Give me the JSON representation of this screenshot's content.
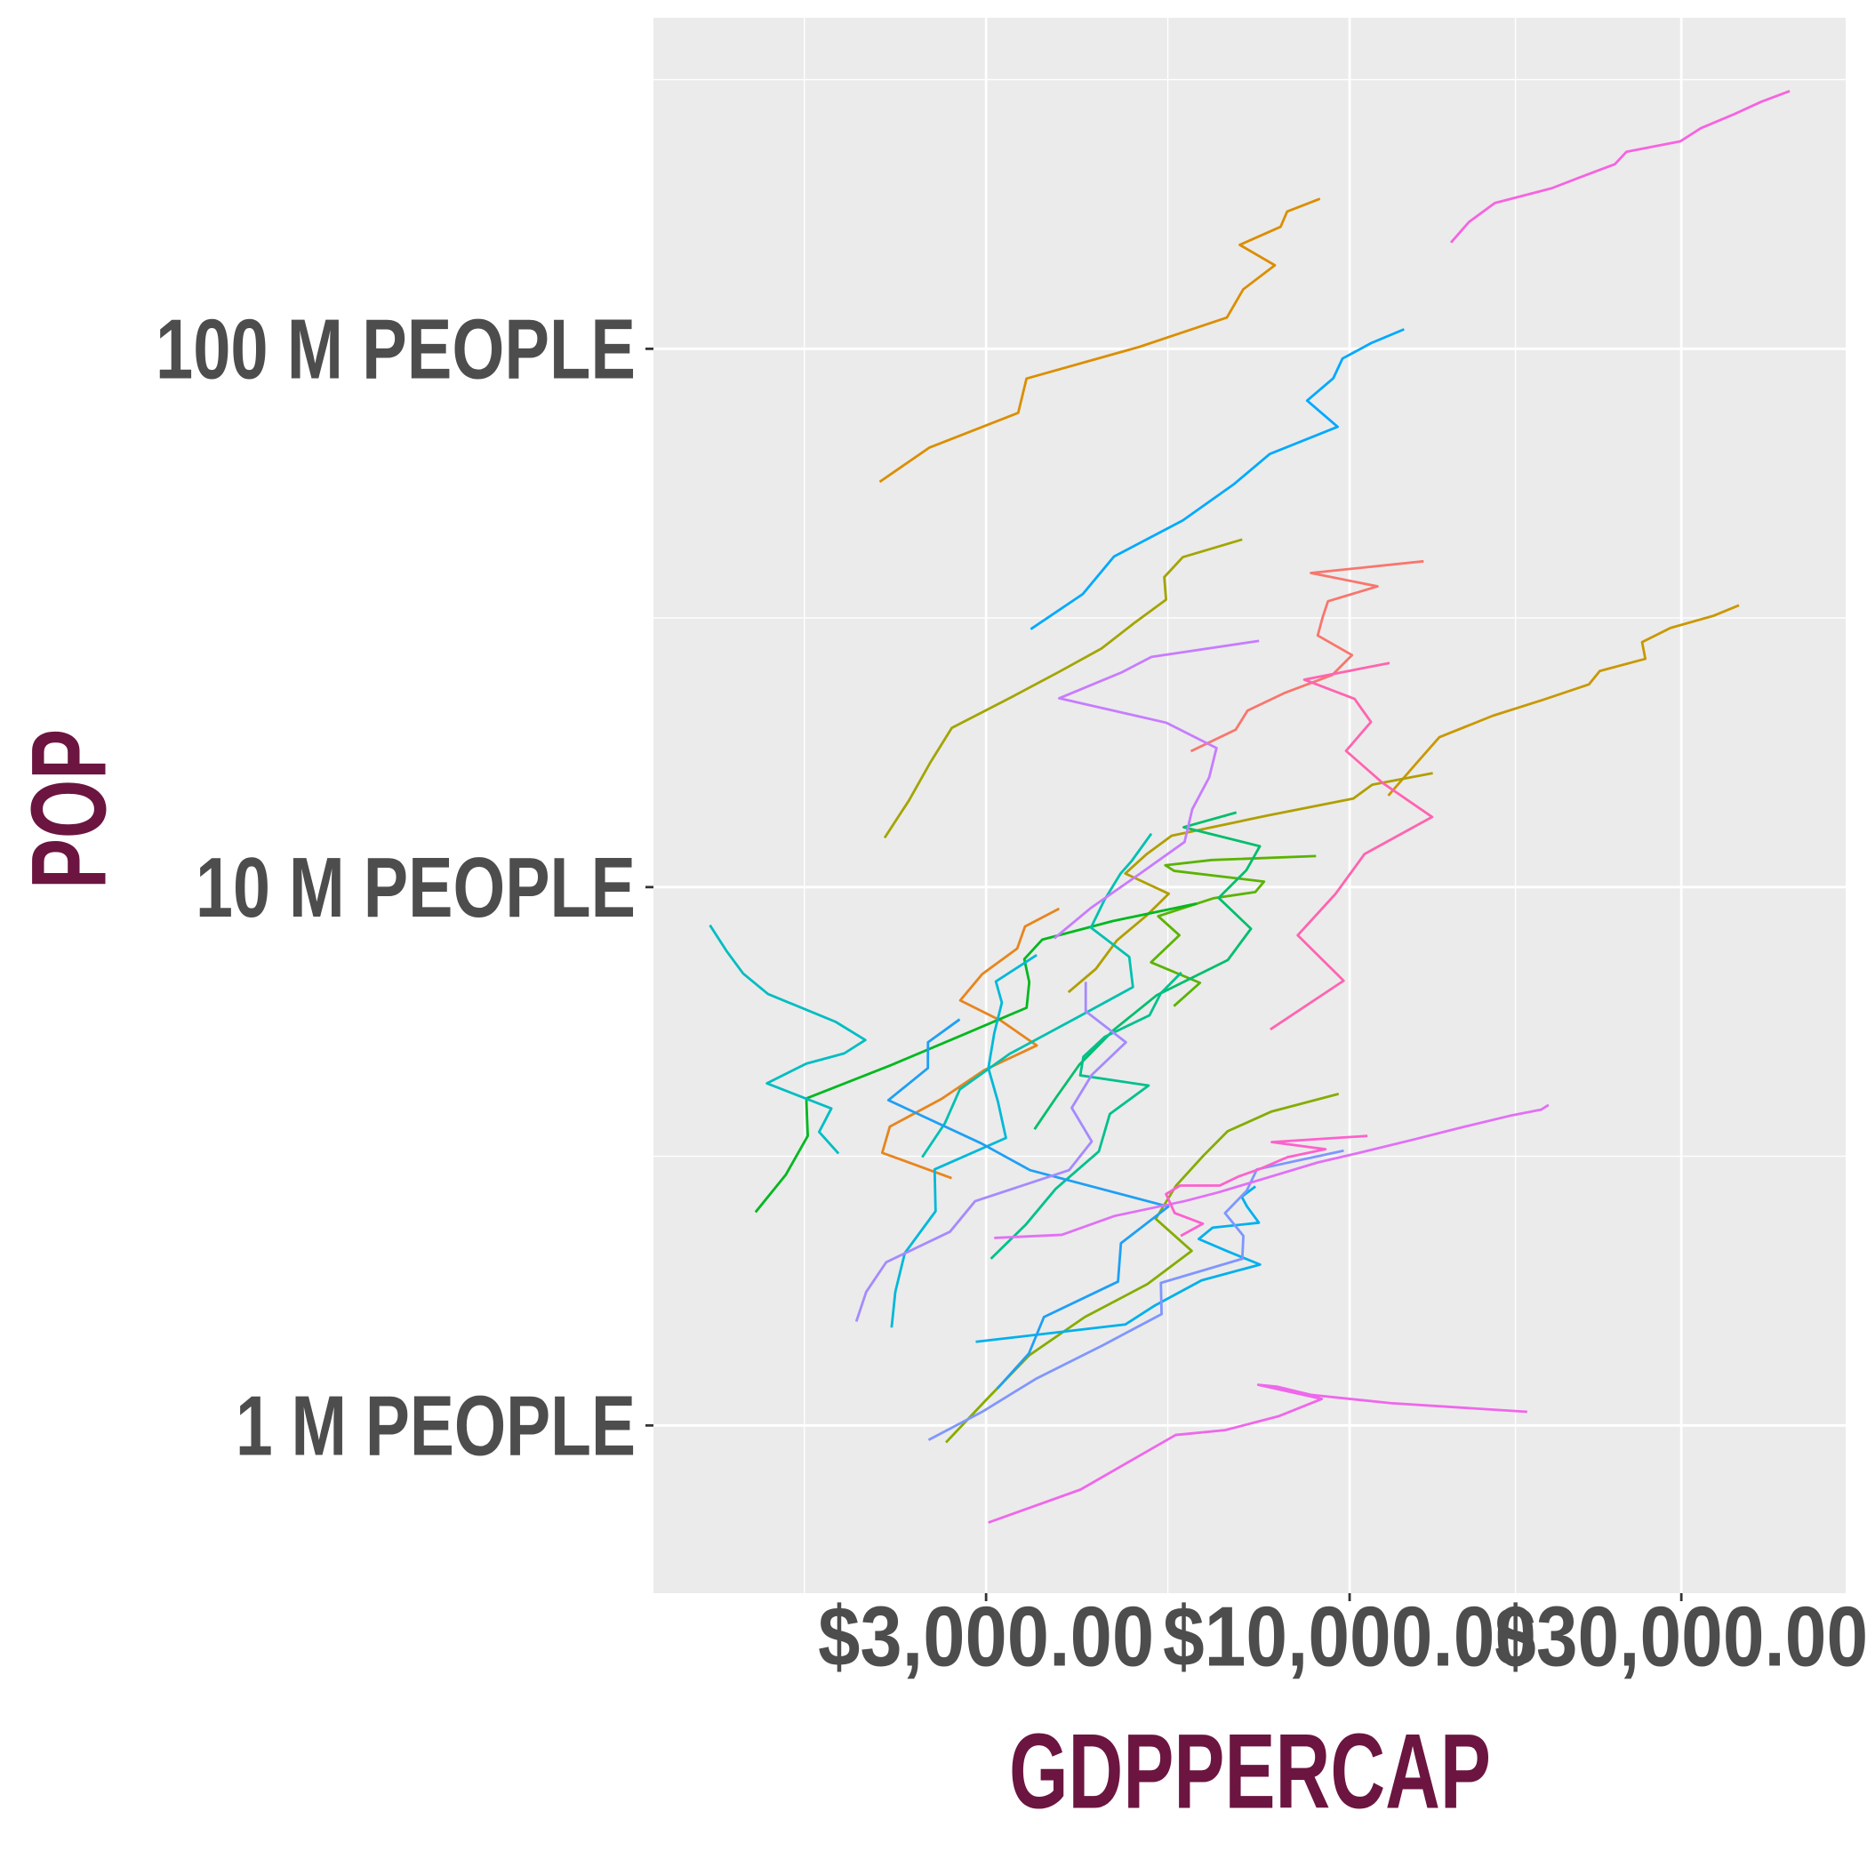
{
  "chart_data": {
    "type": "line",
    "x_label": "GDPPERCAP",
    "y_label": "POP",
    "log_x": true,
    "log_y": true,
    "grid": true,
    "xlim": [
      997,
      51700
    ],
    "ylim": [
      0.488,
      412
    ],
    "xticks": [
      {
        "value": 3000,
        "label": "$3,000.00"
      },
      {
        "value": 10000,
        "label": "$10,000.00"
      },
      {
        "value": 30000,
        "label": "$30,000.00"
      }
    ],
    "yticks": [
      {
        "value": 1,
        "label": "1 M PEOPLE"
      },
      {
        "value": 10,
        "label": "10 M PEOPLE"
      },
      {
        "value": 100,
        "label": "100 M PEOPLE"
      }
    ],
    "series": [
      {
        "color": "#F8766D",
        "x": [
          5911,
          6857,
          7133,
          8053,
          9443,
          10079,
          8998,
          9140,
          9308,
          10967,
          8797,
          12779
        ],
        "values": [
          17.88,
          19.61,
          21.28,
          22.93,
          24.78,
          26.98,
          29.34,
          31.62,
          33.96,
          36.2,
          38.33,
          40.3
        ]
      },
      {
        "color": "#E7851E",
        "x": [
          2677,
          2127,
          2181,
          2587,
          2980,
          3548,
          3157,
          2754,
          2961,
          3326,
          3413,
          3822
        ],
        "values": [
          2.88,
          3.21,
          3.59,
          4.04,
          4.57,
          5.08,
          5.64,
          6.16,
          6.89,
          7.69,
          8.45,
          9.12
        ]
      },
      {
        "color": "#DB8E00",
        "x": [
          2109,
          2487,
          3337,
          3430,
          4986,
          6660,
          7031,
          7807,
          6950,
          7958,
          8131,
          9066
        ],
        "values": [
          56.6,
          65.55,
          76.04,
          88.05,
          100.84,
          114.31,
          128.96,
          142.94,
          155.98,
          168.55,
          179.91,
          190.01
        ]
      },
      {
        "color": "#C99800",
        "x": [
          11367,
          12489,
          13462,
          16077,
          18971,
          22091,
          22899,
          26627,
          26343,
          28955,
          33329,
          36319
        ],
        "values": [
          14.79,
          17.01,
          18.99,
          20.82,
          22.28,
          23.8,
          25.2,
          26.55,
          28.52,
          30.31,
          31.9,
          33.39
        ]
      },
      {
        "color": "#B09F00",
        "x": [
          3940,
          4316,
          4627,
          5107,
          5494,
          4757,
          5096,
          5547,
          7596,
          10118,
          10779,
          13172
        ],
        "values": [
          6.38,
          7.05,
          7.96,
          8.86,
          9.72,
          10.6,
          11.49,
          12.46,
          13.57,
          14.6,
          15.5,
          16.28
        ]
      },
      {
        "color": "#A3A500",
        "x": [
          2144,
          2324,
          2492,
          2678,
          3264,
          3815,
          4398,
          4903,
          5445,
          5413,
          5755,
          7007
        ],
        "values": [
          12.35,
          14.49,
          17.01,
          19.76,
          22.54,
          25.09,
          27.76,
          30.96,
          34.2,
          37.66,
          41.01,
          44.23
        ]
      },
      {
        "color": "#86AC00",
        "x": [
          2627,
          2990,
          3461,
          4161,
          5118,
          5927,
          5262,
          5630,
          6161,
          6677,
          7723,
          9645
        ],
        "values": [
          0.93,
          1.11,
          1.35,
          1.59,
          1.83,
          2.11,
          2.42,
          2.79,
          3.17,
          3.52,
          3.83,
          4.13
        ]
      },
      {
        "color": "#5BB300",
        "x": [
          5587,
          6092,
          5181,
          5690,
          5305,
          6380,
          7317,
          7532,
          5593,
          5432,
          6340,
          8948
        ],
        "values": [
          6.01,
          6.64,
          7.25,
          8.14,
          8.83,
          9.54,
          9.79,
          10.24,
          10.72,
          10.98,
          11.23,
          11.42
        ]
      },
      {
        "color": "#00B81F",
        "x": [
          1398,
          1545,
          1662,
          1654,
          2190,
          2762,
          3431,
          3461,
          3405,
          3614,
          4564,
          6025
        ],
        "values": [
          2.49,
          2.92,
          3.45,
          4.05,
          4.67,
          5.3,
          5.97,
          6.66,
          7.35,
          7.99,
          8.65,
          9.32
        ]
      },
      {
        "color": "#00BE6C",
        "x": [
          3522,
          3780,
          4086,
          4579,
          5281,
          6680,
          7213,
          6481,
          7104,
          7429,
          5773,
          6873
        ],
        "values": [
          3.55,
          4.06,
          4.68,
          5.43,
          6.3,
          7.32,
          8.37,
          9.55,
          10.75,
          11.91,
          12.92,
          13.76
        ]
      },
      {
        "color": "#00C08D",
        "x": [
          3048,
          3421,
          3777,
          4359,
          4520,
          5139,
          4098,
          4141,
          4444,
          5155,
          5351,
          5728
        ],
        "values": [
          2.04,
          2.36,
          2.75,
          3.23,
          3.79,
          4.28,
          4.47,
          4.84,
          5.27,
          5.78,
          6.35,
          6.94
        ]
      },
      {
        "color": "#00C0AF",
        "x": [
          2428,
          2617,
          2750,
          3243,
          4031,
          4879,
          4820,
          4246,
          4439,
          4684,
          4858,
          5186
        ],
        "values": [
          3.15,
          3.64,
          4.21,
          4.9,
          5.7,
          6.52,
          7.42,
          8.41,
          9.46,
          10.6,
          11.18,
          12.57
        ]
      },
      {
        "color": "#00BDC2",
        "x": [
          1840,
          1726,
          1797,
          1452,
          1654,
          1875,
          2011,
          1823,
          1457,
          1342,
          1270,
          1202
        ],
        "values": [
          3.2,
          3.51,
          3.88,
          4.32,
          4.7,
          4.91,
          5.2,
          5.62,
          6.33,
          6.91,
          7.61,
          8.5
        ]
      },
      {
        "color": "#00B8D9",
        "x": [
          2194,
          2221,
          2292,
          2538,
          2530,
          3204,
          3121,
          3023,
          3082,
          3161,
          3099,
          3548
        ],
        "values": [
          1.52,
          1.77,
          2.09,
          2.5,
          2.99,
          3.42,
          3.99,
          4.61,
          5.35,
          6.1,
          6.68,
          7.48
        ]
      },
      {
        "color": "#00B0EC",
        "x": [
          2899,
          4757,
          5246,
          6125,
          7434,
          6650,
          6068,
          6351,
          7405,
          7121,
          6995,
          7321
        ],
        "values": [
          1.43,
          1.54,
          1.67,
          1.86,
          1.99,
          2.11,
          2.22,
          2.33,
          2.38,
          2.55,
          2.66,
          2.78
        ]
      },
      {
        "color": "#00A9FF",
        "x": [
          3478,
          4132,
          4582,
          5755,
          6809,
          7675,
          9611,
          8688,
          9472,
          9767,
          10742,
          11978
        ],
        "values": [
          30.14,
          35.02,
          41.12,
          47.99,
          55.98,
          63.76,
          71.64,
          80.12,
          88.11,
          95.9,
          102.48,
          108.7
        ]
      },
      {
        "color": "#1E9FF5",
        "x": [
          3112,
          3457,
          3634,
          4644,
          4689,
          5486,
          3470,
          2955,
          2171,
          2474,
          2475,
          2749
        ],
        "values": [
          1.17,
          1.36,
          1.59,
          1.85,
          2.18,
          2.55,
          2.98,
          3.34,
          4.02,
          4.61,
          5.15,
          5.68
        ]
      },
      {
        "color": "#7F96FF",
        "x": [
          2480,
          2961,
          3536,
          4421,
          5365,
          5352,
          7009,
          7034,
          6619,
          7113,
          7356,
          9809
        ],
        "values": [
          0.94,
          1.06,
          1.22,
          1.41,
          1.61,
          1.84,
          2.04,
          2.25,
          2.48,
          2.73,
          2.99,
          3.24
        ]
      },
      {
        "color": "#A58AFF",
        "x": [
          1952,
          2017,
          2155,
          2662,
          2893,
          3949,
          4257,
          3984,
          4258,
          4767,
          4173,
          4173
        ],
        "values": [
          1.56,
          1.77,
          2.01,
          2.29,
          2.61,
          2.98,
          3.37,
          3.89,
          4.48,
          5.15,
          5.88,
          6.67
        ]
      },
      {
        "color": "#C77CFF",
        "x": [
          3759,
          4246,
          4957,
          5789,
          5938,
          6281,
          6435,
          5452,
          3822,
          4702,
          5188,
          7409
        ],
        "values": [
          8.03,
          9.15,
          10.52,
          12.13,
          13.95,
          15.99,
          18.13,
          20.2,
          22.43,
          25.06,
          26.77,
          28.67
        ]
      },
      {
        "color": "#E170F5",
        "x": [
          3082,
          3855,
          4592,
          5788,
          6472,
          9005,
          10331,
          12281,
          14642,
          16999,
          18856,
          19329
        ],
        "values": [
          2.23,
          2.26,
          2.45,
          2.61,
          2.71,
          3.08,
          3.21,
          3.39,
          3.59,
          3.76,
          3.86,
          3.94
        ]
      },
      {
        "color": "#EF67EB",
        "x": [
          3023,
          4101,
          4998,
          5621,
          6620,
          7900,
          9119,
          7389,
          7876,
          8793,
          11461,
          18009
        ],
        "values": [
          0.66,
          0.76,
          0.88,
          0.96,
          0.98,
          1.04,
          1.12,
          1.19,
          1.18,
          1.14,
          1.1,
          1.06
        ]
      },
      {
        "color": "#F763E0",
        "x": [
          13990,
          14847,
          16173,
          19530,
          21806,
          24073,
          25010,
          29884,
          32004,
          35767,
          39097,
          42952
        ],
        "values": [
          157.55,
          171.98,
          186.54,
          198.71,
          209.9,
          220.24,
          232.19,
          242.8,
          256.89,
          272.91,
          287.68,
          301.14
        ]
      },
      {
        "color": "#FD61CD",
        "x": [
          5716,
          6150,
          5603,
          5445,
          5703,
          6504,
          6920,
          7452,
          8137,
          9230,
          7727,
          10611
        ],
        "values": [
          2.25,
          2.37,
          2.48,
          2.69,
          2.79,
          2.79,
          2.9,
          3.0,
          3.15,
          3.26,
          3.36,
          3.45
        ]
      },
      {
        "color": "#FF64B0",
        "x": [
          7690,
          9803,
          8422,
          9541,
          10506,
          13144,
          11152,
          9883,
          10733,
          10165,
          8606,
          11416
        ],
        "values": [
          5.44,
          6.7,
          8.14,
          9.71,
          11.52,
          13.5,
          15.62,
          17.91,
          20.27,
          22.37,
          24.29,
          26.08
        ]
      }
    ]
  }
}
